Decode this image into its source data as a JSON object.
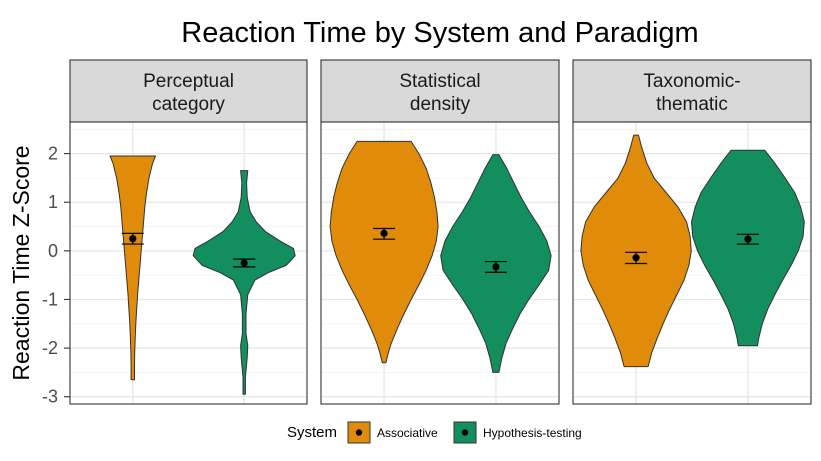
{
  "chart_data": {
    "type": "violin",
    "title": "Reaction Time by System and Paradigm",
    "ylabel": "Reaction Time Z-Score",
    "xlabel": "",
    "ylim": [
      -3.15,
      2.65
    ],
    "yticks": [
      2,
      1,
      0,
      -1,
      -2,
      -3
    ],
    "ytick_labels": [
      "2",
      "1",
      "0",
      "-1",
      "-2",
      "-3"
    ],
    "grid": true,
    "legend": {
      "title": "System",
      "position": "bottom",
      "entries": [
        {
          "label": "Associative",
          "color": "#E08C0A"
        },
        {
          "label": "Hypothesis-testing",
          "color": "#128E5F"
        }
      ]
    },
    "panels": [
      {
        "label": "Perceptual\ncategory",
        "violins": [
          {
            "system": "Associative",
            "ymin": -2.65,
            "ymax": 1.95,
            "mean": 0.25,
            "ci": [
              0.14,
              0.36
            ],
            "density": [
              [
                1.95,
                0.38
              ],
              [
                1.8,
                0.33
              ],
              [
                1.5,
                0.27
              ],
              [
                1.2,
                0.23
              ],
              [
                0.9,
                0.2
              ],
              [
                0.6,
                0.18
              ],
              [
                0.3,
                0.16
              ],
              [
                0.0,
                0.14
              ],
              [
                -0.3,
                0.12
              ],
              [
                -0.6,
                0.1
              ],
              [
                -0.9,
                0.08
              ],
              [
                -1.2,
                0.065
              ],
              [
                -1.5,
                0.05
              ],
              [
                -1.8,
                0.04
              ],
              [
                -2.1,
                0.032
              ],
              [
                -2.4,
                0.028
              ],
              [
                -2.65,
                0.028
              ]
            ]
          },
          {
            "system": "Hypothesis-testing",
            "ymin": -2.95,
            "ymax": 1.65,
            "mean": -0.25,
            "ci": [
              -0.33,
              -0.17
            ],
            "density": [
              [
                1.65,
                0.06
              ],
              [
                1.4,
                0.04
              ],
              [
                1.1,
                0.05
              ],
              [
                0.8,
                0.1
              ],
              [
                0.6,
                0.2
              ],
              [
                0.4,
                0.35
              ],
              [
                0.2,
                0.6
              ],
              [
                0.05,
                0.82
              ],
              [
                -0.1,
                0.85
              ],
              [
                -0.3,
                0.7
              ],
              [
                -0.45,
                0.4
              ],
              [
                -0.6,
                0.18
              ],
              [
                -0.9,
                0.06
              ],
              [
                -1.3,
                0.03
              ],
              [
                -1.7,
                0.03
              ],
              [
                -1.95,
                0.06
              ],
              [
                -2.2,
                0.05
              ],
              [
                -2.6,
                0.02
              ],
              [
                -2.95,
                0.02
              ]
            ]
          }
        ]
      },
      {
        "label": "Statistical\ndensity",
        "violins": [
          {
            "system": "Associative",
            "ymin": -2.3,
            "ymax": 2.25,
            "mean": 0.36,
            "ci": [
              0.24,
              0.46
            ],
            "density": [
              [
                2.25,
                0.45
              ],
              [
                2.0,
                0.58
              ],
              [
                1.7,
                0.7
              ],
              [
                1.4,
                0.78
              ],
              [
                1.1,
                0.84
              ],
              [
                0.8,
                0.88
              ],
              [
                0.5,
                0.9
              ],
              [
                0.2,
                0.87
              ],
              [
                -0.1,
                0.8
              ],
              [
                -0.4,
                0.7
              ],
              [
                -0.7,
                0.58
              ],
              [
                -1.0,
                0.45
              ],
              [
                -1.3,
                0.33
              ],
              [
                -1.6,
                0.22
              ],
              [
                -1.9,
                0.12
              ],
              [
                -2.1,
                0.07
              ],
              [
                -2.3,
                0.03
              ]
            ]
          },
          {
            "system": "Hypothesis-testing",
            "ymin": -2.5,
            "ymax": 1.98,
            "mean": -0.33,
            "ci": [
              -0.44,
              -0.22
            ],
            "density": [
              [
                1.98,
                0.05
              ],
              [
                1.7,
                0.18
              ],
              [
                1.4,
                0.3
              ],
              [
                1.1,
                0.42
              ],
              [
                0.8,
                0.56
              ],
              [
                0.5,
                0.72
              ],
              [
                0.2,
                0.85
              ],
              [
                -0.1,
                0.92
              ],
              [
                -0.4,
                0.88
              ],
              [
                -0.7,
                0.72
              ],
              [
                -1.0,
                0.55
              ],
              [
                -1.3,
                0.4
              ],
              [
                -1.6,
                0.28
              ],
              [
                -1.9,
                0.17
              ],
              [
                -2.2,
                0.1
              ],
              [
                -2.5,
                0.05
              ]
            ]
          }
        ]
      },
      {
        "label": "Taxonomic-\nthematic",
        "violins": [
          {
            "system": "Associative",
            "ymin": -2.38,
            "ymax": 2.38,
            "mean": -0.14,
            "ci": [
              -0.26,
              -0.03
            ],
            "density": [
              [
                2.38,
                0.04
              ],
              [
                2.1,
                0.1
              ],
              [
                1.8,
                0.18
              ],
              [
                1.5,
                0.3
              ],
              [
                1.2,
                0.5
              ],
              [
                0.9,
                0.7
              ],
              [
                0.6,
                0.84
              ],
              [
                0.3,
                0.9
              ],
              [
                0.0,
                0.92
              ],
              [
                -0.3,
                0.88
              ],
              [
                -0.6,
                0.8
              ],
              [
                -0.9,
                0.68
              ],
              [
                -1.2,
                0.56
              ],
              [
                -1.5,
                0.45
              ],
              [
                -1.8,
                0.35
              ],
              [
                -2.1,
                0.26
              ],
              [
                -2.38,
                0.2
              ]
            ]
          },
          {
            "system": "Hypothesis-testing",
            "ymin": -1.95,
            "ymax": 2.07,
            "mean": 0.24,
            "ci": [
              0.14,
              0.34
            ],
            "density": [
              [
                2.07,
                0.28
              ],
              [
                1.8,
                0.45
              ],
              [
                1.5,
                0.62
              ],
              [
                1.2,
                0.78
              ],
              [
                0.9,
                0.88
              ],
              [
                0.6,
                0.94
              ],
              [
                0.3,
                0.92
              ],
              [
                0.0,
                0.84
              ],
              [
                -0.3,
                0.72
              ],
              [
                -0.6,
                0.58
              ],
              [
                -0.9,
                0.45
              ],
              [
                -1.2,
                0.33
              ],
              [
                -1.5,
                0.24
              ],
              [
                -1.8,
                0.18
              ],
              [
                -1.95,
                0.16
              ]
            ]
          }
        ]
      }
    ]
  }
}
